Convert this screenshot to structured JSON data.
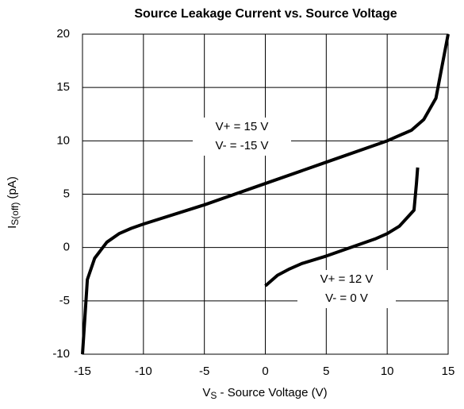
{
  "chart_data": {
    "type": "line",
    "title": "Source Leakage Current vs. Source Voltage",
    "xlabel": {
      "main": "V",
      "sub": "S",
      "rest": " - Source Voltage (V)"
    },
    "ylabel": {
      "main": "I",
      "sub": "S(off)",
      "rest": " (pA)"
    },
    "xlim": [
      -15,
      15
    ],
    "xticks": [
      -15,
      -10,
      -5,
      0,
      5,
      10,
      15
    ],
    "ylim": [
      -10,
      20
    ],
    "yticks": [
      -10,
      -5,
      0,
      5,
      10,
      15,
      20
    ],
    "grid": true,
    "series": [
      {
        "label": [
          "V+ = 15 V",
          "V- = -15 V"
        ],
        "color": "#000000",
        "x": [
          -15,
          -14.6,
          -14,
          -13,
          -12,
          -11,
          -10,
          -5,
          0,
          5,
          10,
          12,
          13,
          14,
          14.5,
          15
        ],
        "values": [
          -10,
          -3,
          -1,
          0.5,
          1.3,
          1.8,
          2.2,
          4,
          6,
          8,
          10,
          11,
          12,
          14,
          17,
          20
        ]
      },
      {
        "label": [
          "V+ = 12 V",
          "V- = 0 V"
        ],
        "color": "#000000",
        "x": [
          0,
          1,
          2,
          3,
          5,
          7,
          9,
          10,
          11,
          11.8,
          12.2,
          12.4,
          12.5
        ],
        "values": [
          -3.6,
          -2.6,
          -2,
          -1.5,
          -0.8,
          0,
          0.8,
          1.3,
          2,
          3,
          3.5,
          6,
          7.5
        ]
      }
    ]
  }
}
